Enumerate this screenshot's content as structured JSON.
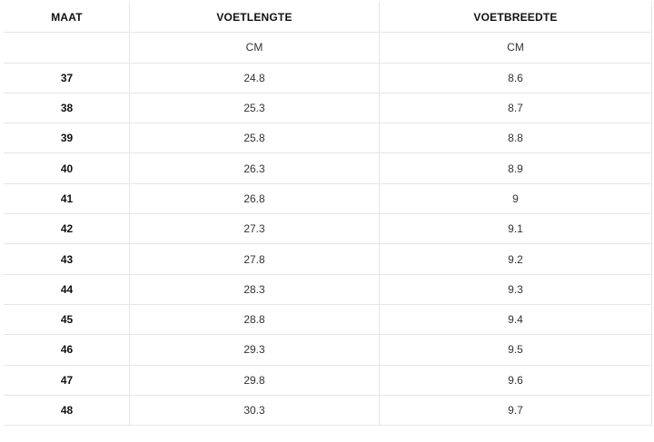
{
  "headers": {
    "size": "MAAT",
    "length": "VOETLENGTE",
    "width": "VOETBREEDTE"
  },
  "units": {
    "size": "",
    "length": "CM",
    "width": "CM"
  },
  "rows": [
    {
      "size": "37",
      "length": "24.8",
      "width": "8.6"
    },
    {
      "size": "38",
      "length": "25.3",
      "width": "8.7"
    },
    {
      "size": "39",
      "length": "25.8",
      "width": "8.8"
    },
    {
      "size": "40",
      "length": "26.3",
      "width": "8.9"
    },
    {
      "size": "41",
      "length": "26.8",
      "width": "9"
    },
    {
      "size": "42",
      "length": "27.3",
      "width": "9.1"
    },
    {
      "size": "43",
      "length": "27.8",
      "width": "9.2"
    },
    {
      "size": "44",
      "length": "28.3",
      "width": "9.3"
    },
    {
      "size": "45",
      "length": "28.8",
      "width": "9.4"
    },
    {
      "size": "46",
      "length": "29.3",
      "width": "9.5"
    },
    {
      "size": "47",
      "length": "29.8",
      "width": "9.6"
    },
    {
      "size": "48",
      "length": "30.3",
      "width": "9.7"
    }
  ]
}
